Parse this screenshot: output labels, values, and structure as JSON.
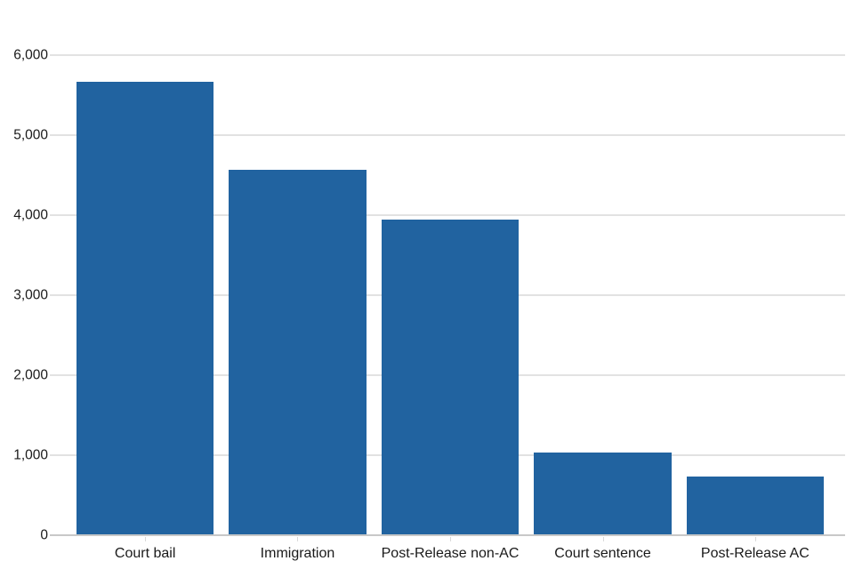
{
  "chart_data": {
    "type": "bar",
    "categories": [
      "Court bail",
      "Immigration",
      "Post-Release non-AC",
      "Court sentence",
      "Post-Release AC"
    ],
    "values": [
      5670,
      4570,
      3950,
      1030,
      730
    ],
    "title": "",
    "xlabel": "",
    "ylabel": "",
    "ylim": [
      0,
      6000
    ],
    "yticks": [
      0,
      1000,
      2000,
      3000,
      4000,
      5000,
      6000
    ],
    "ytick_labels": [
      "0",
      "1,000",
      "2,000",
      "3,000",
      "4,000",
      "5,000",
      "6,000"
    ],
    "grid": true,
    "legend_position": "none",
    "bar_color": "#2163a0"
  },
  "colors": {
    "bar": "#2163a0",
    "gridline": "#e2e2e2",
    "baseline": "#c8c8c8",
    "tick": "#d9d9d9",
    "label_text": "#1a1a1a",
    "background": "#ffffff"
  }
}
